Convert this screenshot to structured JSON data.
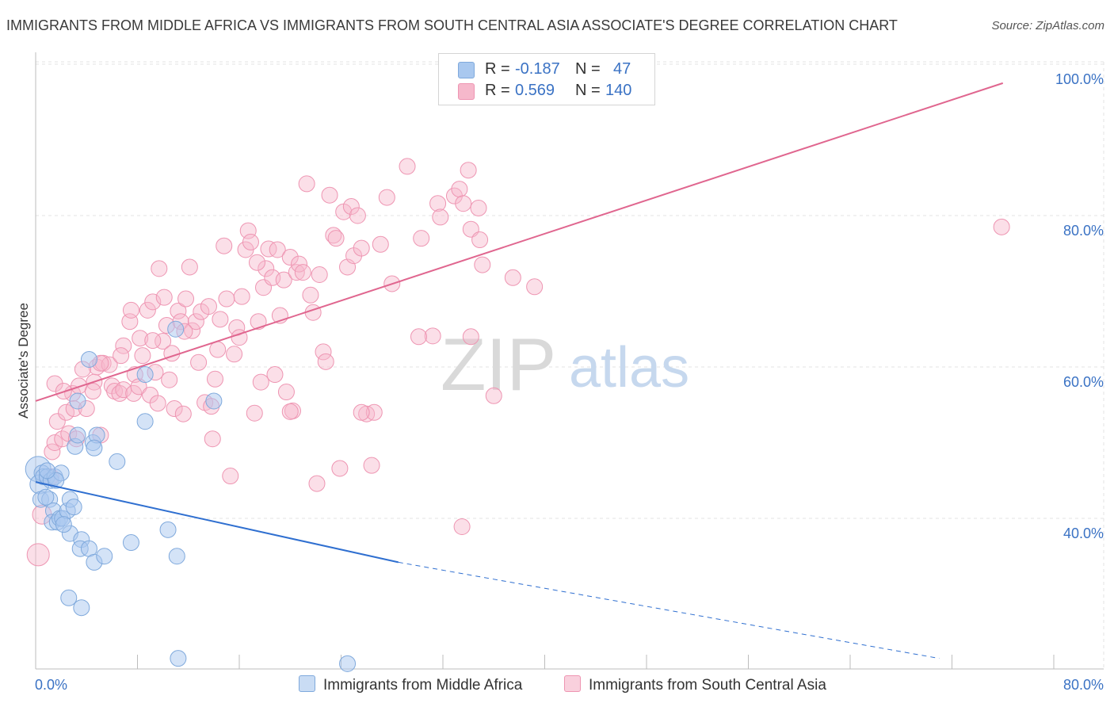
{
  "title": "IMMIGRANTS FROM MIDDLE AFRICA VS IMMIGRANTS FROM SOUTH CENTRAL ASIA ASSOCIATE'S DEGREE CORRELATION CHART",
  "source": "Source: ZipAtlas.com",
  "watermark": {
    "zip": "ZIP",
    "atlas": "atlas"
  },
  "legend": {
    "r_label": "R =",
    "n_label": "N =",
    "series_1": {
      "r": "-0.187",
      "n": "47"
    },
    "series_2": {
      "r": "0.569",
      "n": "140"
    }
  },
  "colors": {
    "blue_fill": "#a9c8ef",
    "blue_stroke": "#7fa9dc",
    "blue_line": "#2f6fd0",
    "pink_fill": "#f6b8cb",
    "pink_stroke": "#ee95b2",
    "pink_line": "#e0668f",
    "axis_text": "#3a72c4",
    "grid": "#e3e3e3"
  },
  "chart_data": {
    "type": "scatter",
    "title": "IMMIGRANTS FROM MIDDLE AFRICA VS IMMIGRANTS FROM SOUTH CENTRAL ASIA ASSOCIATE'S DEGREE CORRELATION CHART",
    "xlabel": "",
    "ylabel": "Associate's Degree",
    "xlim": [
      0,
      80
    ],
    "ylim": [
      20,
      103
    ],
    "x_tick_labels": [
      {
        "value": 0,
        "label": "0.0%"
      },
      {
        "value": 80,
        "label": "80.0%"
      }
    ],
    "y_tick_labels": [
      {
        "value": 40,
        "label": "40.0%"
      },
      {
        "value": 60,
        "label": "60.0%"
      },
      {
        "value": 80,
        "label": "80.0%"
      },
      {
        "value": 100,
        "label": "100.0%"
      }
    ],
    "series": [
      {
        "name": "Immigrants from Middle Africa",
        "color": "#a9c8ef",
        "R": -0.187,
        "N": 47,
        "trend": {
          "x0": 0,
          "y0": 44.8,
          "x1": 28.5,
          "y1": 34.2,
          "dashed_to_x": 71,
          "dashed_to_y": 21.5
        },
        "points": [
          [
            0.2,
            46.5,
            16
          ],
          [
            0.3,
            44.5,
            12
          ],
          [
            0.5,
            46,
            10
          ],
          [
            0.6,
            45.5,
            10
          ],
          [
            0.9,
            45.5,
            10
          ],
          [
            1.2,
            45,
            10
          ],
          [
            1.5,
            45.5,
            10
          ],
          [
            2,
            46,
            10
          ],
          [
            0.4,
            42.5,
            10
          ],
          [
            1.1,
            42.5,
            10
          ],
          [
            1.4,
            41,
            10
          ],
          [
            1.3,
            39.5,
            10
          ],
          [
            1.7,
            39.5,
            10
          ],
          [
            1.9,
            40,
            10
          ],
          [
            2.1,
            40,
            10
          ],
          [
            2.5,
            41,
            10
          ],
          [
            2.7,
            42.5,
            10
          ],
          [
            3,
            41.5,
            10
          ],
          [
            2.7,
            38,
            10
          ],
          [
            3.6,
            37.2,
            10
          ],
          [
            3.5,
            36,
            10
          ],
          [
            4.2,
            36,
            10
          ],
          [
            4.6,
            34.2,
            10
          ],
          [
            5.4,
            35,
            10
          ],
          [
            7.5,
            36.8,
            10
          ],
          [
            10.4,
            38.5,
            10
          ],
          [
            11.1,
            35,
            10
          ],
          [
            6.4,
            47.5,
            10
          ],
          [
            4.5,
            50,
            10
          ],
          [
            4.8,
            51,
            10
          ],
          [
            3.1,
            49.5,
            10
          ],
          [
            3.3,
            51,
            10
          ],
          [
            3.3,
            55.5,
            10
          ],
          [
            4.2,
            61,
            10
          ],
          [
            8.6,
            52.8,
            10
          ],
          [
            8.6,
            59,
            10
          ],
          [
            11,
            65,
            10
          ],
          [
            14,
            55.5,
            10
          ],
          [
            3.6,
            28.2,
            10
          ],
          [
            2.6,
            29.5,
            10
          ],
          [
            11.2,
            21.5,
            10
          ],
          [
            24.5,
            20.8,
            10
          ],
          [
            0.8,
            42.8,
            10
          ],
          [
            2.2,
            39.2,
            10
          ],
          [
            1.6,
            45,
            10
          ],
          [
            4.6,
            49.3,
            10
          ],
          [
            0.9,
            46.3,
            10
          ]
        ]
      },
      {
        "name": "Immigrants from South Central Asia",
        "color": "#f6b8cb",
        "R": 0.569,
        "N": 140,
        "trend": {
          "x0": 0,
          "y0": 55.5,
          "x1": 76,
          "y1": 97.5
        },
        "points": [
          [
            0.2,
            35.2,
            14
          ],
          [
            0.5,
            40.5,
            12
          ],
          [
            1.2,
            45.5,
            10
          ],
          [
            1.3,
            48.8,
            10
          ],
          [
            1.5,
            50,
            10
          ],
          [
            1.7,
            52.8,
            10
          ],
          [
            2.1,
            50.5,
            10
          ],
          [
            2.6,
            51.2,
            10
          ],
          [
            3.2,
            50.5,
            10
          ],
          [
            2.4,
            54,
            10
          ],
          [
            2.9,
            56.5,
            10
          ],
          [
            3.4,
            57.5,
            10
          ],
          [
            3,
            54.5,
            10
          ],
          [
            4,
            54.5,
            10
          ],
          [
            4.6,
            58,
            10
          ],
          [
            4.5,
            56.8,
            10
          ],
          [
            4.8,
            60,
            10
          ],
          [
            5.1,
            51,
            10
          ],
          [
            5.3,
            60.5,
            10
          ],
          [
            5.8,
            60.3,
            10
          ],
          [
            6,
            57.5,
            10
          ],
          [
            6.2,
            56.8,
            10
          ],
          [
            6.6,
            56.5,
            10
          ],
          [
            6.9,
            57,
            10
          ],
          [
            6.9,
            62.8,
            10
          ],
          [
            7.4,
            66,
            10
          ],
          [
            7.5,
            67.5,
            10
          ],
          [
            7.7,
            56.5,
            10
          ],
          [
            7.8,
            59,
            10
          ],
          [
            8.1,
            57.4,
            10
          ],
          [
            8.2,
            63.8,
            10
          ],
          [
            8.4,
            61.5,
            10
          ],
          [
            8.8,
            67.5,
            10
          ],
          [
            9,
            56.3,
            10
          ],
          [
            9.2,
            68.6,
            10
          ],
          [
            9.4,
            59.3,
            10
          ],
          [
            9.6,
            55.2,
            10
          ],
          [
            9.7,
            73,
            10
          ],
          [
            10,
            63.4,
            10
          ],
          [
            10.1,
            69.2,
            10
          ],
          [
            10.3,
            65.5,
            10
          ],
          [
            10.5,
            58.3,
            10
          ],
          [
            10.7,
            61.8,
            10
          ],
          [
            10.9,
            54.5,
            10
          ],
          [
            11.2,
            67.4,
            10
          ],
          [
            11.4,
            66,
            10
          ],
          [
            11.6,
            53.8,
            10
          ],
          [
            11.8,
            69,
            10
          ],
          [
            12.1,
            73.2,
            10
          ],
          [
            12.3,
            64.8,
            10
          ],
          [
            12.6,
            66,
            10
          ],
          [
            12.8,
            60.6,
            10
          ],
          [
            13,
            67.3,
            10
          ],
          [
            13.3,
            55.3,
            10
          ],
          [
            13.6,
            68,
            10
          ],
          [
            13.9,
            50.5,
            10
          ],
          [
            14.1,
            58.4,
            10
          ],
          [
            14.3,
            62.3,
            10
          ],
          [
            14.5,
            66.3,
            10
          ],
          [
            14.8,
            76,
            10
          ],
          [
            15,
            69,
            10
          ],
          [
            15.3,
            45.6,
            10
          ],
          [
            15.6,
            61.7,
            10
          ],
          [
            15.8,
            65.2,
            10
          ],
          [
            16,
            63.9,
            10
          ],
          [
            16.2,
            69.3,
            10
          ],
          [
            16.5,
            75.5,
            10
          ],
          [
            16.7,
            78,
            10
          ],
          [
            16.9,
            76.5,
            10
          ],
          [
            17.2,
            53.9,
            10
          ],
          [
            17.5,
            66,
            10
          ],
          [
            17.7,
            58,
            10
          ],
          [
            17.9,
            70.5,
            10
          ],
          [
            18.1,
            73,
            10
          ],
          [
            18.3,
            75.6,
            10
          ],
          [
            18.6,
            71.8,
            10
          ],
          [
            18.8,
            59,
            10
          ],
          [
            19,
            75.5,
            10
          ],
          [
            19.2,
            66.8,
            10
          ],
          [
            19.5,
            71.5,
            10
          ],
          [
            19.7,
            56.7,
            10
          ],
          [
            20,
            74.5,
            10
          ],
          [
            20.2,
            54.2,
            10
          ],
          [
            20.5,
            72.5,
            10
          ],
          [
            20.7,
            73.6,
            10
          ],
          [
            21,
            72.5,
            10
          ],
          [
            21.3,
            84.2,
            10
          ],
          [
            21.6,
            69.5,
            10
          ],
          [
            21.8,
            67.2,
            10
          ],
          [
            22.1,
            44.6,
            10
          ],
          [
            22.3,
            72.2,
            10
          ],
          [
            22.6,
            62,
            10
          ],
          [
            22.8,
            60.7,
            10
          ],
          [
            23.1,
            82.7,
            10
          ],
          [
            23.4,
            77.4,
            10
          ],
          [
            23.6,
            77,
            10
          ],
          [
            23.9,
            46.6,
            10
          ],
          [
            24.2,
            80.5,
            10
          ],
          [
            24.5,
            73.2,
            10
          ],
          [
            24.8,
            81.2,
            10
          ],
          [
            25,
            74.7,
            10
          ],
          [
            25.3,
            80,
            10
          ],
          [
            25.6,
            75.7,
            10
          ],
          [
            26,
            53.8,
            10
          ],
          [
            26.4,
            47,
            10
          ],
          [
            26.6,
            54,
            10
          ],
          [
            27.1,
            76.2,
            10
          ],
          [
            27.6,
            82.4,
            10
          ],
          [
            28,
            71,
            10
          ],
          [
            29.2,
            86.5,
            10
          ],
          [
            30.3,
            77,
            10
          ],
          [
            31.2,
            64.1,
            10
          ],
          [
            31.6,
            81.6,
            10
          ],
          [
            31.8,
            79.8,
            10
          ],
          [
            32.9,
            82.6,
            10
          ],
          [
            33.3,
            83.5,
            10
          ],
          [
            33.6,
            81.6,
            10
          ],
          [
            34,
            86,
            10
          ],
          [
            34.2,
            78.2,
            10
          ],
          [
            34.8,
            81,
            10
          ],
          [
            34.9,
            76.8,
            10
          ],
          [
            35.1,
            73.5,
            10
          ],
          [
            36,
            56.2,
            10
          ],
          [
            37.5,
            71.8,
            10
          ],
          [
            39.2,
            70.6,
            10
          ],
          [
            1.5,
            57.8,
            10
          ],
          [
            2.2,
            56.8,
            10
          ],
          [
            3.7,
            59.7,
            10
          ],
          [
            5.1,
            60.5,
            10
          ],
          [
            6.7,
            61.5,
            10
          ],
          [
            9.2,
            63.5,
            10
          ],
          [
            11.7,
            64.7,
            10
          ],
          [
            17.4,
            73.8,
            10
          ],
          [
            33.5,
            38.9,
            10
          ],
          [
            20,
            54.1,
            10
          ],
          [
            13.8,
            54.8,
            10
          ],
          [
            25.6,
            54,
            10
          ],
          [
            34.2,
            64,
            10
          ],
          [
            30.1,
            64,
            10
          ],
          [
            75.9,
            78.5,
            10
          ]
        ]
      }
    ]
  },
  "bottom_legend": {
    "series_1_label": "Immigrants from Middle Africa",
    "series_2_label": "Immigrants from South Central Asia"
  }
}
